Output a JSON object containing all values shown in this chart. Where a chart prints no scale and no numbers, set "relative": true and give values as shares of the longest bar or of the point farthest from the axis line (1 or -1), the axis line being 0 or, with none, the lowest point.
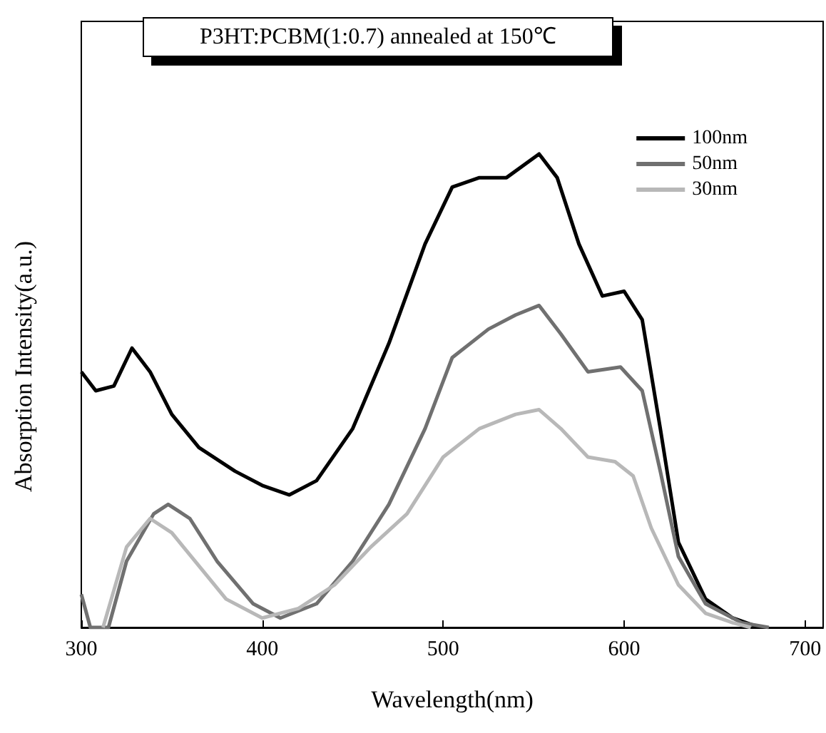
{
  "chart_data": {
    "type": "line",
    "title": "P3HT:PCBM(1:0.7) annealed at 150℃",
    "xlabel": "Wavelength(nm)",
    "ylabel": "Absorption Intensity(a.u.)",
    "relative": true,
    "xlim": [
      300,
      710
    ],
    "xticks": [
      300,
      400,
      500,
      600,
      700
    ],
    "tick_labels": "x",
    "grid": false,
    "legend": "top right",
    "marker": "none",
    "line_style": "solid",
    "series": [
      {
        "name": "100nm",
        "color": "#000000",
        "x": [
          300,
          308,
          318,
          328,
          338,
          350,
          365,
          385,
          400,
          415,
          430,
          450,
          470,
          490,
          505,
          520,
          535,
          553,
          563,
          575,
          588,
          600,
          610,
          620,
          630,
          645,
          660,
          675
        ],
        "values": [
          0.54,
          0.5,
          0.51,
          0.59,
          0.54,
          0.45,
          0.38,
          0.33,
          0.3,
          0.28,
          0.31,
          0.42,
          0.6,
          0.81,
          0.93,
          0.95,
          0.95,
          1.0,
          0.95,
          0.81,
          0.7,
          0.71,
          0.65,
          0.42,
          0.18,
          0.06,
          0.02,
          0
        ]
      },
      {
        "name": "50nm",
        "color": "#707070",
        "x": [
          300,
          305,
          315,
          325,
          340,
          348,
          360,
          375,
          395,
          410,
          430,
          450,
          470,
          490,
          505,
          525,
          540,
          553,
          565,
          580,
          598,
          610,
          620,
          630,
          645,
          665,
          680
        ],
        "values": [
          0.07,
          0,
          0,
          0.14,
          0.24,
          0.26,
          0.23,
          0.14,
          0.05,
          0.02,
          0.05,
          0.14,
          0.26,
          0.42,
          0.57,
          0.63,
          0.66,
          0.68,
          0.62,
          0.54,
          0.55,
          0.5,
          0.33,
          0.15,
          0.05,
          0.01,
          0
        ]
      },
      {
        "name": "30nm",
        "color": "#b8b8b8",
        "x": [
          312,
          325,
          338,
          350,
          365,
          380,
          400,
          420,
          440,
          460,
          480,
          500,
          520,
          540,
          553,
          565,
          580,
          595,
          605,
          615,
          630,
          645,
          660,
          670
        ],
        "values": [
          0,
          0.17,
          0.23,
          0.2,
          0.13,
          0.06,
          0.02,
          0.04,
          0.09,
          0.17,
          0.24,
          0.36,
          0.42,
          0.45,
          0.46,
          0.42,
          0.36,
          0.35,
          0.32,
          0.21,
          0.09,
          0.03,
          0.01,
          0
        ]
      }
    ]
  }
}
